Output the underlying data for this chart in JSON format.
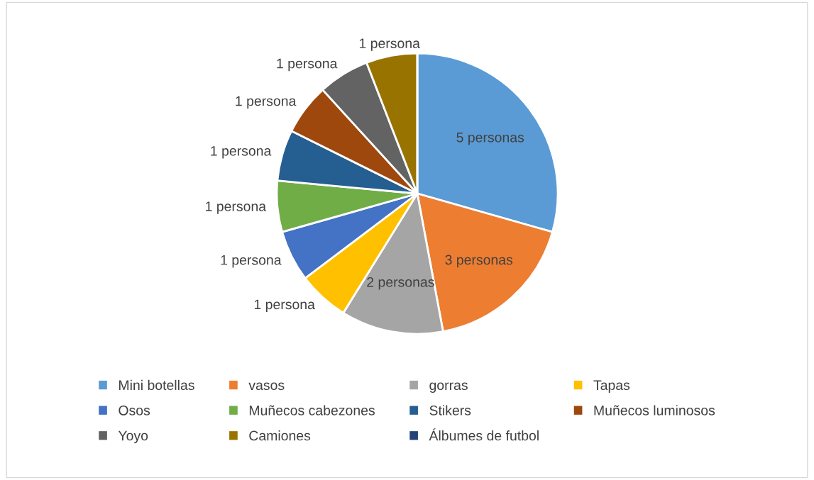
{
  "chart_data": {
    "type": "pie",
    "categories": [
      "Mini botellas",
      "vasos",
      "gorras",
      "Tapas",
      "Osos",
      "Muñecos cabezones",
      "Stikers",
      "Muñecos luminosos",
      "Yoyo",
      "Camiones",
      "Álbumes de futbol"
    ],
    "values": [
      5,
      3,
      2,
      1,
      1,
      1,
      1,
      1,
      1,
      1,
      0
    ],
    "colors": [
      "#5b9bd5",
      "#ed7d31",
      "#a5a5a5",
      "#ffc000",
      "#4472c4",
      "#70ad47",
      "#255e91",
      "#9e480e",
      "#636363",
      "#997300",
      "#264478"
    ],
    "value_labels": [
      "5 personas",
      "3 personas",
      "2 personas",
      "1 persona",
      "1 persona",
      "1 persona",
      "1 persona",
      "1 persona",
      "1 persona",
      "1 persona",
      null
    ],
    "legend": "bottom"
  }
}
